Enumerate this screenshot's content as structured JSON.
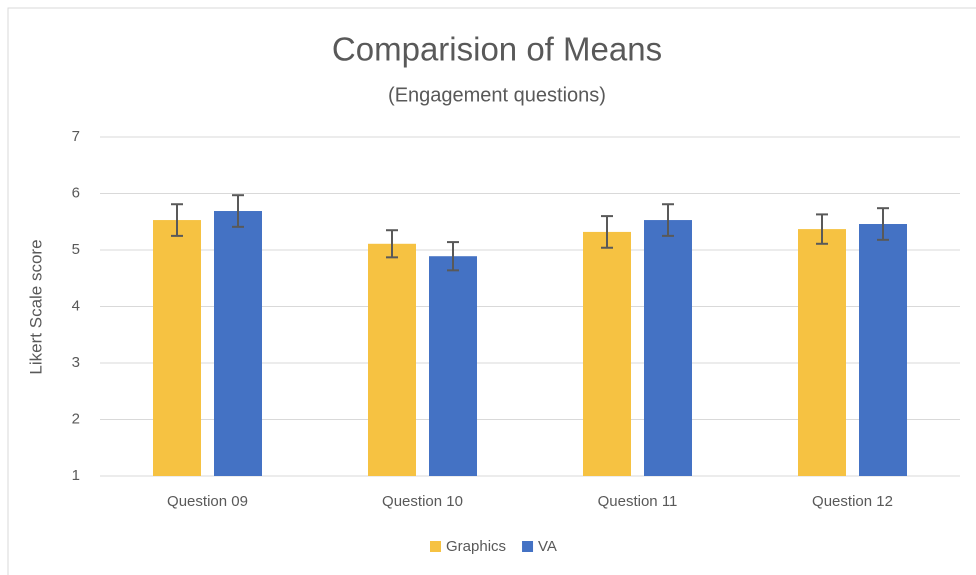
{
  "chart_data": {
    "type": "bar",
    "title": "Comparision of Means",
    "subtitle": "(Engagement questions)",
    "y_label": "Likert Scale score",
    "categories": [
      "Question 09",
      "Question 10",
      "Question 11",
      "Question 12"
    ],
    "series": [
      {
        "name": "Graphics",
        "color": "#f6c242",
        "values": [
          5.53,
          5.11,
          5.32,
          5.37
        ],
        "errors": [
          0.28,
          0.24,
          0.28,
          0.26
        ]
      },
      {
        "name": "VA",
        "color": "#4472c4",
        "values": [
          5.69,
          4.89,
          5.53,
          5.46
        ],
        "errors": [
          0.28,
          0.25,
          0.28,
          0.28
        ]
      }
    ],
    "ylim": [
      1,
      7
    ],
    "yticks": [
      1,
      2,
      3,
      4,
      5,
      6,
      7
    ],
    "grid": true,
    "legend": "bottom"
  }
}
